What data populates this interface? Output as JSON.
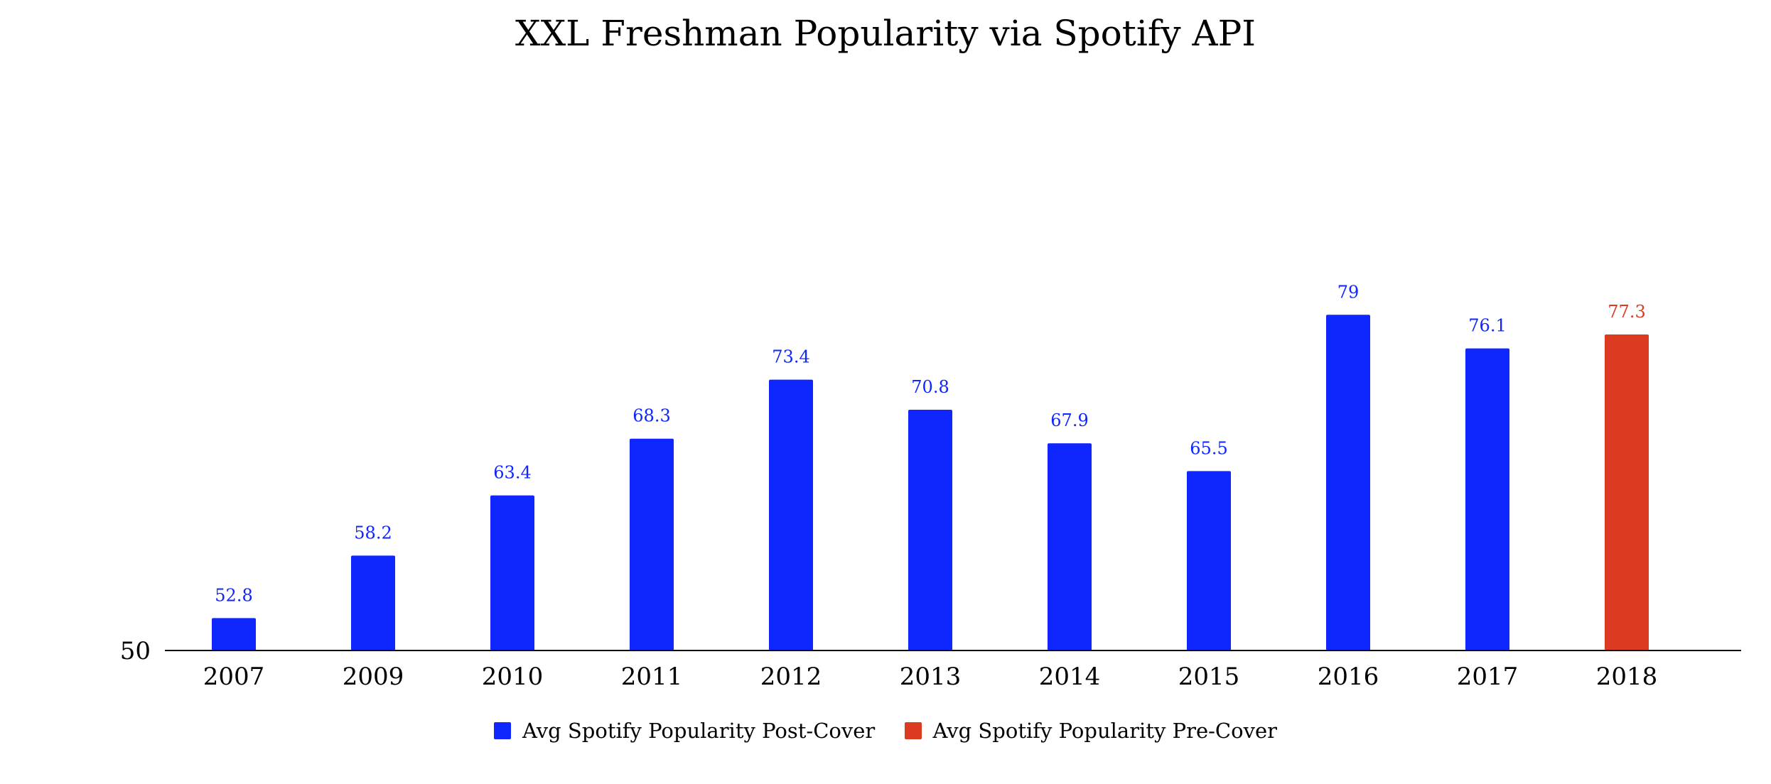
{
  "chart_data": {
    "type": "bar",
    "title": "XXL Freshman Popularity via Spotify API",
    "xlabel": "",
    "ylabel": "",
    "ylim": [
      50,
      85
    ],
    "y_ticks": [
      50
    ],
    "categories": [
      "2007",
      "2009",
      "2010",
      "2011",
      "2012",
      "2013",
      "2014",
      "2015",
      "2016",
      "2017",
      "2018"
    ],
    "series": [
      {
        "name": "Avg Spotify Popularity Post-Cover",
        "color": "#0f26ff",
        "values": [
          52.8,
          58.2,
          63.4,
          68.3,
          73.4,
          70.8,
          67.9,
          65.5,
          79,
          76.1,
          null
        ],
        "labels": [
          "52.8",
          "58.2",
          "63.4",
          "68.3",
          "73.4",
          "70.8",
          "67.9",
          "65.5",
          "79",
          "76.1",
          ""
        ]
      },
      {
        "name": "Avg Spotify Popularity Pre-Cover",
        "color": "#dc3b22",
        "values": [
          null,
          null,
          null,
          null,
          null,
          null,
          null,
          null,
          null,
          null,
          77.3
        ],
        "labels": [
          "",
          "",
          "",
          "",
          "",
          "",
          "",
          "",
          "",
          "",
          "77.3"
        ]
      }
    ],
    "grid": false,
    "legend_position": "bottom"
  }
}
